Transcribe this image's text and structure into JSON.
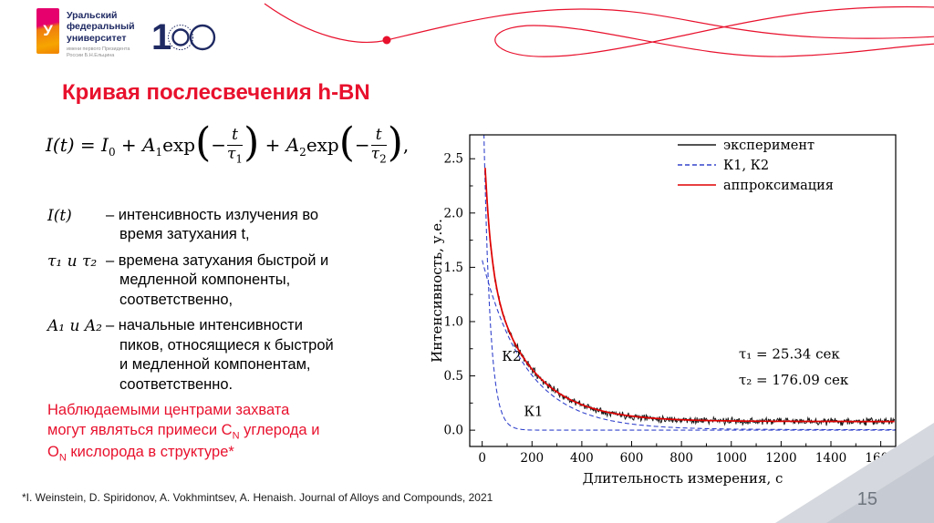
{
  "slide": {
    "title": "Кривая послесвечения h-BN",
    "page_number": "15",
    "footnote": "*I. Weinstein, D. Spiridonov, A. Vokhmintsev, A. Henaish. Journal of Alloys and Compounds, 2021",
    "accent_red": "#e8112d"
  },
  "header": {
    "logo_letter": "У",
    "university_lines": [
      "Уральский",
      "федеральный",
      "университет"
    ],
    "university_subtext": [
      "имени первого Президента",
      "России Б.Н.Ельцина"
    ],
    "anniversary_digit": "1"
  },
  "formula": {
    "lhs": "I(t)",
    "eq": " = ",
    "i_base": "I",
    "sub_0": "0",
    "plus": " + ",
    "a_base": "A",
    "sub_1": "1",
    "sub_2": "2",
    "exp_word": "exp",
    "minus": "−",
    "t_var": "t",
    "tau_var": "τ",
    "lparen": "(",
    "rparen": ")",
    "comma": ","
  },
  "definitions": [
    {
      "term": "I(t)",
      "text": "– интенсивность излучения во время затухания t,"
    },
    {
      "term": "τ₁ и τ₂",
      "text": "– времена затухания быстрой и медленной компоненты, соответственно,"
    },
    {
      "term": "A₁ и A₂",
      "text": "– начальные интенсивности пиков, относящиеся к быстрой и медленной компонентам, соответственно."
    }
  ],
  "note": {
    "p1": "Наблюдаемыми центрами захвата могут являться примеси C",
    "s1": "N",
    "p2": " углерода и O",
    "s2": "N",
    "p3": " кислорода в структуре*"
  },
  "chart_data": {
    "type": "line",
    "title": "",
    "xlabel": "Длительность измерения, с",
    "ylabel": "Интенсивность, у.е.",
    "xlim": [
      -50,
      1660
    ],
    "ylim": [
      -0.15,
      2.72
    ],
    "grid": false,
    "x_ticks": [
      "0",
      "200",
      "400",
      "600",
      "800",
      "1000",
      "1200",
      "1400",
      "1600"
    ],
    "y_ticks": [
      "0.0",
      "0.5",
      "1.0",
      "1.5",
      "2.0",
      "2.5"
    ],
    "legend_position": "top-right",
    "legend": [
      {
        "label": "эксперимент",
        "color": "#1a1a1a",
        "dash": ""
      },
      {
        "label": "К1, К2",
        "color": "#3344cc",
        "dash": "5 3"
      },
      {
        "label": "аппроксимация",
        "color": "#e00000",
        "dash": ""
      }
    ],
    "fit_parameters": {
      "tau1_s": 25.34,
      "tau2_s": 176.09,
      "I0": 0.08,
      "A1": 1.5,
      "A2": 1.5
    },
    "curves": [
      {
        "name": "experiment",
        "kind": "biexp",
        "noise": 0.025,
        "seed": 11,
        "I0": 0.08,
        "A1": 1.5,
        "tau1": 25.34,
        "A2": 1.5,
        "tau2": 176.09,
        "t0": 12,
        "t1": 1655,
        "color": "#1a1a1a",
        "width": 1,
        "dash": ""
      },
      {
        "name": "K1",
        "kind": "exp",
        "A": 3.6,
        "tau": 25.34,
        "I0": 0.0,
        "t0": 0,
        "t1": 1660,
        "color": "#3344cc",
        "width": 1.1,
        "dash": "5 3"
      },
      {
        "name": "K2",
        "kind": "exp",
        "A": 1.56,
        "tau": 176.09,
        "I0": 0.005,
        "t0": 0,
        "t1": 1660,
        "color": "#3344cc",
        "width": 1.1,
        "dash": "5 3"
      },
      {
        "name": "approximation",
        "kind": "biexp",
        "noise": 0,
        "I0": 0.08,
        "A1": 1.5,
        "tau1": 25.34,
        "A2": 1.5,
        "tau2": 176.09,
        "t0": 12,
        "t1": 1655,
        "color": "#e00000",
        "width": 1.7,
        "dash": ""
      }
    ],
    "annotations": [
      {
        "text": "К2",
        "x": 118,
        "y": 0.64,
        "anchor": "middle"
      },
      {
        "text": "К1",
        "x": 206,
        "y": 0.13,
        "anchor": "middle"
      },
      {
        "text": "τ₁ = 25.34 сек",
        "x": 1030,
        "y": 0.66,
        "anchor": "start"
      },
      {
        "text": "τ₂ = 176.09 сек",
        "x": 1030,
        "y": 0.42,
        "anchor": "start"
      }
    ]
  }
}
